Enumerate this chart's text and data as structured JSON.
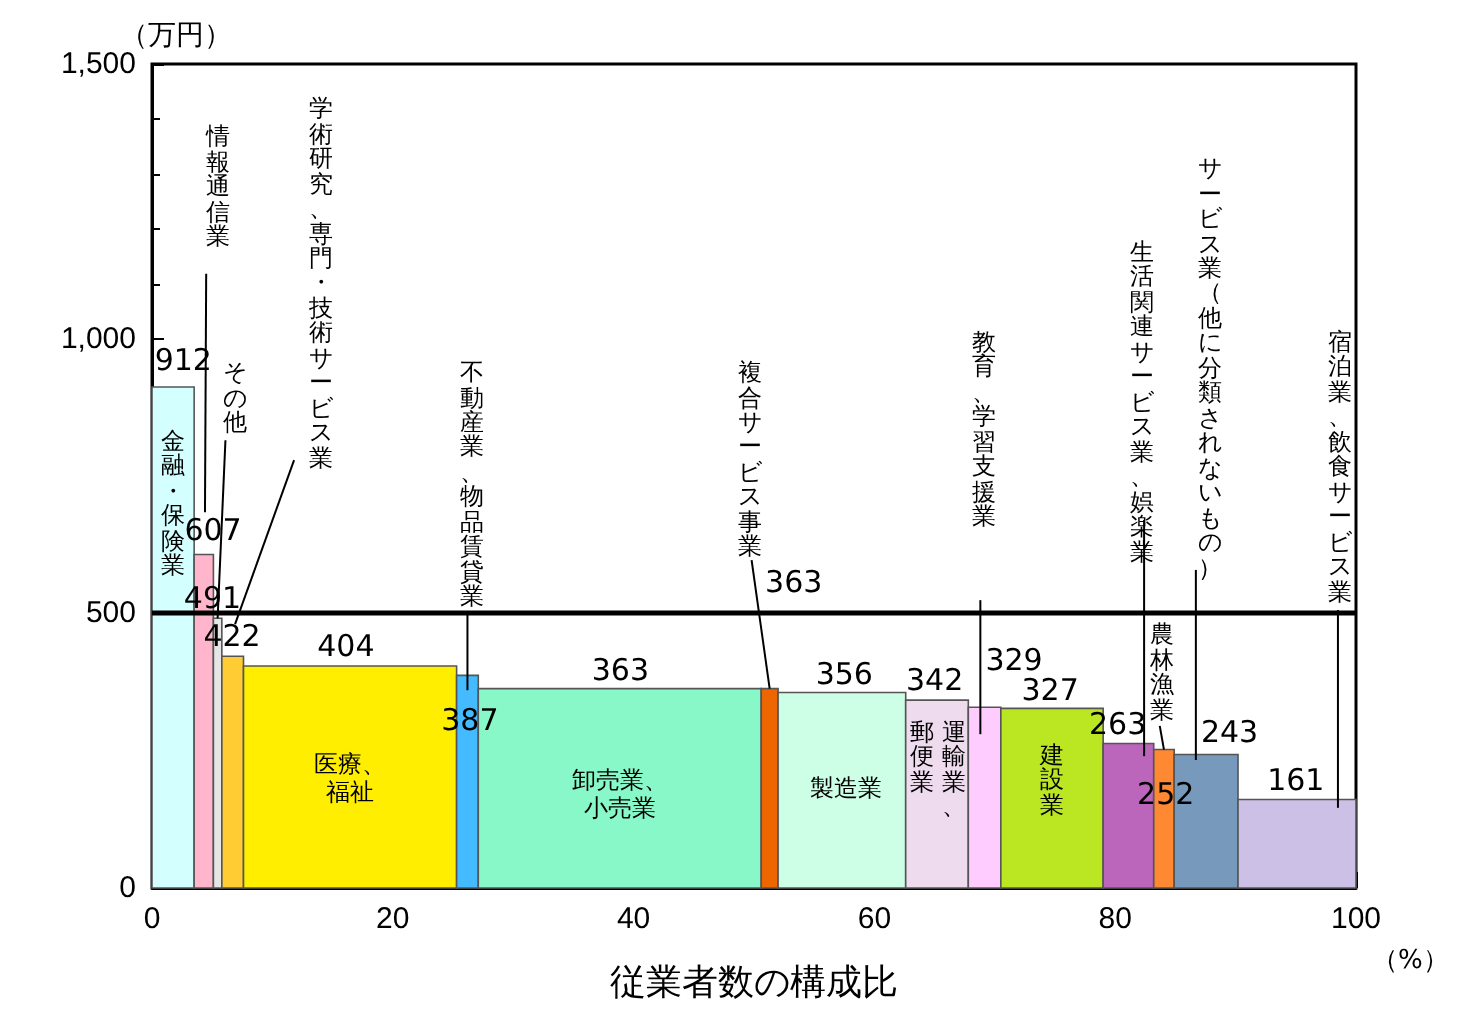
{
  "chart_data": {
    "type": "histogram",
    "xlabel": "従業者数の構成比",
    "ylabel": "（万円）",
    "xlim": [
      0,
      100
    ],
    "xticks": [
      0,
      20,
      40,
      60,
      80,
      100
    ],
    "ylim": [
      0,
      1500
    ],
    "yticks": [
      0,
      500,
      {
        "value": 1000,
        "label": "1,000"
      },
      {
        "value": 1500,
        "label": "1,500"
      }
    ],
    "bins": [
      0,
      3.5,
      5.1,
      5.8,
      7.6,
      25.3,
      27.1,
      50.6,
      52.0,
      62.6,
      67.8,
      70.5,
      79.0,
      83.2,
      84.9,
      90.2,
      100
    ],
    "values": [
      912,
      607,
      491,
      422,
      404,
      387,
      363,
      363,
      356,
      342,
      329,
      327,
      263,
      252,
      243,
      161
    ],
    "colors": [
      "#d4ffff",
      "#ffb6cc",
      "#e6e6e6",
      "#ffcc33",
      "#ffee00",
      "#44bbff",
      "#88f8c8",
      "#ee6600",
      "#ccffe6",
      "#eedcee",
      "#ffccff",
      "#bbe622",
      "#bb66bb",
      "#ff8833",
      "#7799bb",
      "#ccc0e6"
    ],
    "data_labels": true,
    "ref_lines": [
      {
        "axis": "y",
        "value": 500,
        "color": "#000000"
      }
    ],
    "annotations": [
      "金融・保険業",
      "情報通信業",
      {
        "text": "その他",
        "x": 5.45,
        "y": 491
      },
      "学術研究、専門・技術サービス業",
      "医療、福祉",
      "不動産業、物品賃貸業",
      "卸売業、小売業",
      {
        "text": "複合サービス事業",
        "x": 51.3,
        "y": 363
      },
      "製造業",
      "運輸業、郵便業",
      "教育、学習支援業",
      "建設業",
      "生活関連サービス業、娯楽業",
      {
        "text": "農林漁業",
        "x": 84.05,
        "y": 252
      },
      "サービス業（他に分類されないもの）",
      "宿泊業、飲食サービス業",
      "（%）"
    ]
  }
}
